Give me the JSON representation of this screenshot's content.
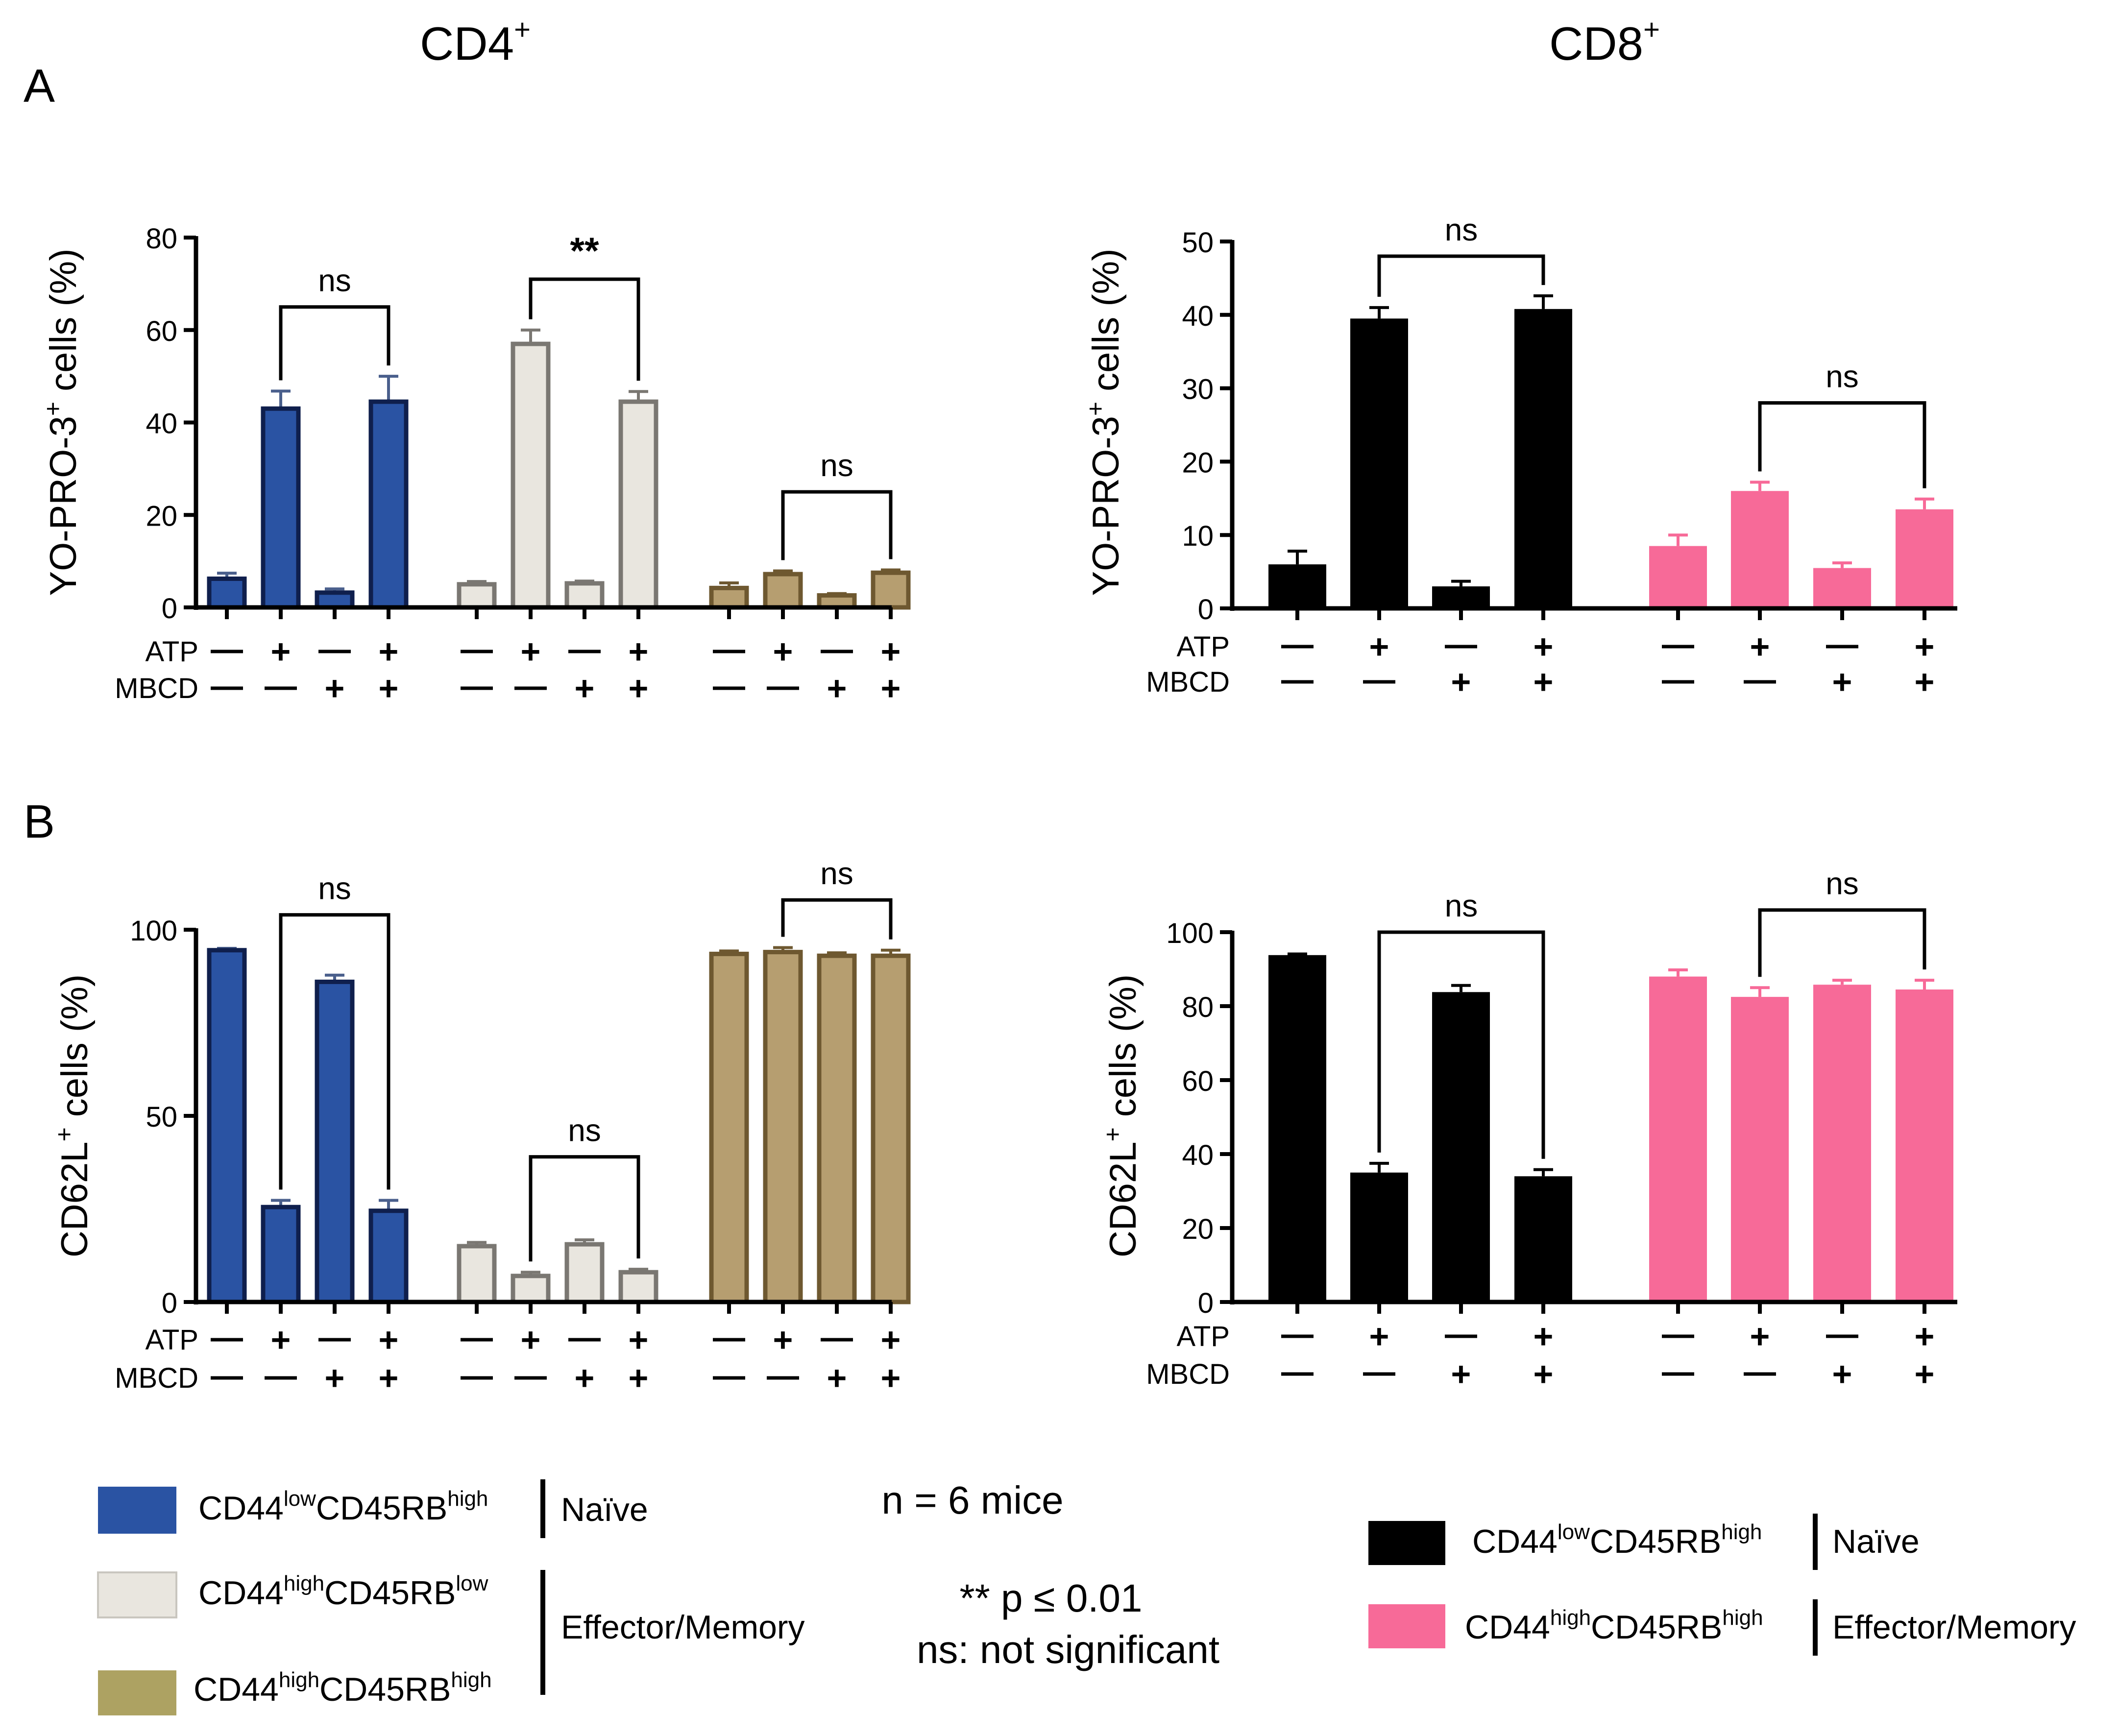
{
  "figure": {
    "col_titles": [
      "CD4",
      "CD8"
    ],
    "col_title_sup": "+",
    "panel_labels": [
      "A",
      "B"
    ],
    "row_labels": [
      "ATP",
      "MBCD"
    ],
    "plus": "+",
    "minus": "—"
  },
  "legend": {
    "cd4_items": [
      {
        "base": "CD44",
        "sup1": "low",
        "mid": "CD45RB",
        "sup2": "high",
        "color": "#2a53a3"
      },
      {
        "base": "CD44",
        "sup1": "high",
        "mid": "CD45RB",
        "sup2": "low",
        "color": "#e9e6df"
      },
      {
        "base": "CD44",
        "sup1": "high",
        "mid": "CD45RB",
        "sup2": "high",
        "color": "#ada262"
      }
    ],
    "cd4_groups": [
      "Naïve",
      "Effector/Memory"
    ],
    "cd8_items": [
      {
        "base": "CD44",
        "sup1": "low",
        "mid": "CD45RB",
        "sup2": "high",
        "color": "#000000",
        "group": "Naïve"
      },
      {
        "base": "CD44",
        "sup1": "high",
        "mid": "CD45RB",
        "sup2": "high",
        "color": "#f76a98",
        "group": "Effector/Memory"
      }
    ],
    "n_text": "n = 6 mice",
    "p_text": "** p ≤ 0.01",
    "ns_text": "ns: not significant"
  },
  "chart_data": [
    {
      "id": "A-CD4",
      "type": "bar",
      "ylabel": "YO-PRO-3",
      "ylabel_sup": "+",
      "ylabel_suffix": " cells (%)",
      "ylim": [
        0,
        80
      ],
      "yticks": [
        0,
        20,
        40,
        60,
        80
      ],
      "atp": [
        "-",
        "+",
        "-",
        "+",
        "-",
        "+",
        "-",
        "+",
        "-",
        "+",
        "-",
        "+"
      ],
      "mbcd": [
        "-",
        "-",
        "+",
        "+",
        "-",
        "-",
        "+",
        "+",
        "-",
        "-",
        "+",
        "+"
      ],
      "groups": [
        {
          "name": "CD44lowCD45RBhigh",
          "fill": "#2a53a3",
          "stroke": "#0f1f4d",
          "err": "#4a5f8c",
          "values": [
            6.2,
            43.0,
            3.2,
            44.5
          ],
          "errors": [
            1.2,
            3.8,
            0.8,
            5.5
          ]
        },
        {
          "name": "CD44highCD45RBlow",
          "fill": "#e9e6df",
          "stroke": "#7a7772",
          "err": "#7a7772",
          "values": [
            5.0,
            57.0,
            5.2,
            44.5
          ],
          "errors": [
            0.6,
            3.0,
            0.5,
            2.2
          ]
        },
        {
          "name": "CD44highCD45RBhigh",
          "fill": "#b69e70",
          "stroke": "#6e5830",
          "err": "#6e5830",
          "values": [
            4.2,
            7.2,
            2.6,
            7.5
          ],
          "errors": [
            1.1,
            0.7,
            0.4,
            0.6
          ]
        }
      ],
      "annotations": [
        {
          "from": 1,
          "to": 3,
          "label": "ns",
          "y": 65
        },
        {
          "from": 5,
          "to": 7,
          "label": "**",
          "y": 71
        },
        {
          "from": 9,
          "to": 11,
          "label": "ns",
          "y": 25
        }
      ]
    },
    {
      "id": "A-CD8",
      "type": "bar",
      "ylabel": "YO-PRO-3",
      "ylabel_sup": "+",
      "ylabel_suffix": " cells (%)",
      "ylim": [
        0,
        50
      ],
      "yticks": [
        0,
        10,
        20,
        30,
        40,
        50
      ],
      "atp": [
        "-",
        "+",
        "-",
        "+",
        "-",
        "+",
        "-",
        "+"
      ],
      "mbcd": [
        "-",
        "-",
        "+",
        "+",
        "-",
        "-",
        "+",
        "+"
      ],
      "groups": [
        {
          "name": "CD44lowCD45RBhigh",
          "fill": "#000000",
          "stroke": "#000000",
          "err": "#000000",
          "values": [
            6.0,
            39.5,
            3.0,
            40.8
          ],
          "errors": [
            1.8,
            1.5,
            0.7,
            1.8
          ]
        },
        {
          "name": "CD44highCD45RBhigh",
          "fill": "#f76a98",
          "stroke": "#f76a98",
          "err": "#f76a98",
          "values": [
            8.5,
            16.0,
            5.5,
            13.5
          ],
          "errors": [
            1.5,
            1.2,
            0.7,
            1.4
          ]
        }
      ],
      "annotations": [
        {
          "from": 1,
          "to": 3,
          "label": "ns",
          "y": 48
        },
        {
          "from": 5,
          "to": 7,
          "label": "ns",
          "y": 28
        }
      ]
    },
    {
      "id": "B-CD4",
      "type": "bar",
      "ylabel": "CD62L",
      "ylabel_sup": "+",
      "ylabel_suffix": " cells (%)",
      "ylim": [
        0,
        100
      ],
      "yticks": [
        0,
        50,
        100
      ],
      "atp": [
        "-",
        "+",
        "-",
        "+",
        "-",
        "+",
        "-",
        "+",
        "-",
        "+",
        "-",
        "+"
      ],
      "mbcd": [
        "-",
        "-",
        "+",
        "+",
        "-",
        "-",
        "+",
        "+",
        "-",
        "-",
        "+",
        "+"
      ],
      "groups": [
        {
          "name": "CD44lowCD45RBhigh",
          "fill": "#2a53a3",
          "stroke": "#0f1f4d",
          "err": "#4a5f8c",
          "values": [
            94.5,
            25.5,
            86.0,
            24.5
          ],
          "errors": [
            0.5,
            1.8,
            1.8,
            2.8
          ]
        },
        {
          "name": "CD44highCD45RBlow",
          "fill": "#e9e6df",
          "stroke": "#7a7772",
          "err": "#7a7772",
          "values": [
            15.0,
            7.0,
            15.5,
            8.0
          ],
          "errors": [
            1.0,
            1.0,
            1.2,
            0.8
          ]
        },
        {
          "name": "CD44highCD45RBhigh",
          "fill": "#b69e70",
          "stroke": "#6e5830",
          "err": "#6e5830",
          "values": [
            93.5,
            94.0,
            93.0,
            93.0
          ],
          "errors": [
            0.8,
            1.2,
            0.8,
            1.5
          ]
        }
      ],
      "annotations": [
        {
          "from": 1,
          "to": 3,
          "label": "ns",
          "y": 104
        },
        {
          "from": 5,
          "to": 7,
          "label": "ns",
          "y": 39
        },
        {
          "from": 9,
          "to": 11,
          "label": "ns",
          "y": 108
        }
      ]
    },
    {
      "id": "B-CD8",
      "type": "bar",
      "ylabel": "CD62L",
      "ylabel_sup": "+",
      "ylabel_suffix": " cells (%)",
      "ylim": [
        0,
        100
      ],
      "yticks": [
        0,
        20,
        40,
        60,
        80,
        100
      ],
      "atp": [
        "-",
        "+",
        "-",
        "+",
        "-",
        "+",
        "-",
        "+"
      ],
      "mbcd": [
        "-",
        "-",
        "+",
        "+",
        "-",
        "-",
        "+",
        "+"
      ],
      "groups": [
        {
          "name": "CD44lowCD45RBhigh",
          "fill": "#000000",
          "stroke": "#000000",
          "err": "#000000",
          "values": [
            93.8,
            35.0,
            83.8,
            34.0
          ],
          "errors": [
            0.3,
            2.5,
            1.8,
            1.8
          ]
        },
        {
          "name": "CD44highCD45RBhigh",
          "fill": "#f76a98",
          "stroke": "#f76a98",
          "err": "#f76a98",
          "values": [
            88.0,
            82.5,
            85.8,
            84.5
          ],
          "errors": [
            1.8,
            2.5,
            1.2,
            2.5
          ]
        }
      ],
      "annotations": [
        {
          "from": 1,
          "to": 3,
          "label": "ns",
          "y": 100
        },
        {
          "from": 5,
          "to": 7,
          "label": "ns",
          "y": 106
        }
      ]
    }
  ]
}
